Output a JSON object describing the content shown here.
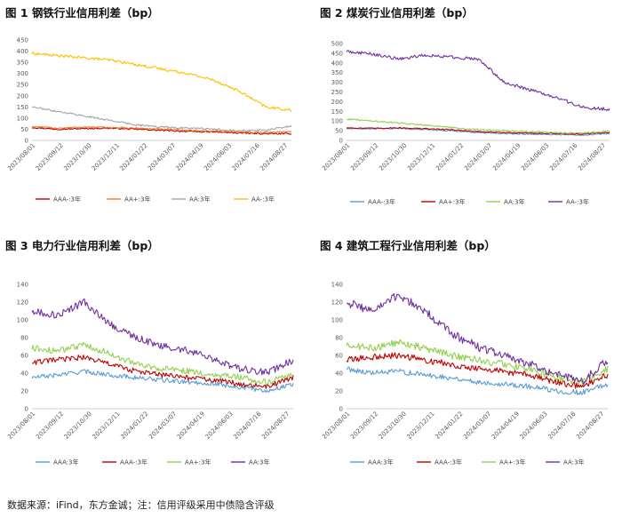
{
  "figures": [
    {
      "id": "fig1",
      "title": "图 1  钢铁行业信用利差（bp）",
      "chart_data": {
        "type": "line",
        "title": "图 1  钢铁行业信用利差（bp）",
        "xlabel": "",
        "ylabel": "",
        "ylim": [
          0,
          450
        ],
        "yticks": [
          0,
          50,
          100,
          150,
          200,
          250,
          300,
          350,
          400,
          450
        ],
        "xticks": [
          "2023/08/01",
          "2023/09/12",
          "2023/10/30",
          "2023/12/11",
          "2024/01/22",
          "2024/03/07",
          "2024/04/19",
          "2024/06/03",
          "2024/07/16",
          "2024/08/27"
        ],
        "grid": false,
        "legend": "bottom",
        "series": [
          {
            "name": "AAA-:3年",
            "color": "#c00000",
            "values": [
              58,
              50,
              53,
              55,
              50,
              45,
              40,
              38,
              33,
              30,
              30
            ]
          },
          {
            "name": "AA+:3年",
            "color": "#ed7d31",
            "values": [
              62,
              55,
              60,
              58,
              55,
              50,
              45,
              42,
              38,
              35,
              40
            ]
          },
          {
            "name": "AA:3年",
            "color": "#a5a5a5",
            "values": [
              150,
              130,
              110,
              90,
              70,
              60,
              55,
              50,
              45,
              45,
              65
            ]
          },
          {
            "name": "AA-:3年",
            "color": "#ffc000",
            "values": [
              390,
              380,
              370,
              360,
              340,
              320,
              300,
              270,
              220,
              150,
              135
            ]
          }
        ]
      }
    },
    {
      "id": "fig2",
      "title": "图 2  煤炭行业信用利差（bp）",
      "chart_data": {
        "type": "line",
        "title": "图 2  煤炭行业信用利差（bp）",
        "xlabel": "",
        "ylabel": "",
        "ylim": [
          0,
          500
        ],
        "yticks": [
          0,
          50,
          100,
          150,
          200,
          250,
          300,
          350,
          400,
          450,
          500
        ],
        "xticks": [
          "2023/08/01",
          "2023/09/12",
          "2023/10/30",
          "2023/12/11",
          "2024/01/22",
          "2024/03/07",
          "2024/04/19",
          "2024/06/03",
          "2024/07/16",
          "2024/08/27"
        ],
        "grid": false,
        "legend": "bottom",
        "series": [
          {
            "name": "AAA-:3年",
            "color": "#5b9bd5",
            "values": [
              60,
              60,
              62,
              55,
              50,
              40,
              35,
              32,
              30,
              28,
              35
            ]
          },
          {
            "name": "AA+:3年",
            "color": "#c00000",
            "values": [
              65,
              62,
              65,
              60,
              55,
              45,
              40,
              38,
              35,
              32,
              42
            ]
          },
          {
            "name": "AA:3年",
            "color": "#92d050",
            "values": [
              110,
              100,
              90,
              80,
              65,
              55,
              50,
              45,
              40,
              38,
              48
            ]
          },
          {
            "name": "AA-:3年",
            "color": "#7030a0",
            "values": [
              460,
              445,
              420,
              440,
              430,
              420,
              300,
              260,
              220,
              170,
              160
            ]
          }
        ]
      }
    },
    {
      "id": "fig3",
      "title": "图 3  电力行业信用利差（bp）",
      "chart_data": {
        "type": "line",
        "title": "图 3  电力行业信用利差（bp）",
        "xlabel": "",
        "ylabel": "",
        "ylim": [
          0,
          140
        ],
        "yticks": [
          0,
          20,
          40,
          60,
          80,
          100,
          120,
          140
        ],
        "xticks": [
          "2023/08/01",
          "2023/09/12",
          "2023/10/30",
          "2023/12/11",
          "2024/01/22",
          "2024/03/07",
          "2024/04/19",
          "2024/06/03",
          "2024/07/16",
          "2024/08/27"
        ],
        "grid": false,
        "legend": "bottom",
        "series": [
          {
            "name": "AAA:3年",
            "color": "#5b9bd5",
            "values": [
              35,
              38,
              42,
              38,
              35,
              32,
              30,
              28,
              24,
              20,
              28
            ]
          },
          {
            "name": "AAA-:3年",
            "color": "#c00000",
            "values": [
              52,
              55,
              58,
              50,
              42,
              38,
              35,
              32,
              28,
              25,
              35
            ]
          },
          {
            "name": "AA+:3年",
            "color": "#92d050",
            "values": [
              68,
              65,
              72,
              62,
              50,
              45,
              42,
              38,
              35,
              30,
              40
            ]
          },
          {
            "name": "AA:3年",
            "color": "#7030a0",
            "values": [
              110,
              105,
              120,
              95,
              80,
              70,
              65,
              55,
              45,
              40,
              55
            ]
          }
        ]
      }
    },
    {
      "id": "fig4",
      "title": "图 4  建筑工程行业信用利差（bp）",
      "chart_data": {
        "type": "line",
        "title": "图 4  建筑工程行业信用利差（bp）",
        "xlabel": "",
        "ylabel": "",
        "ylim": [
          0,
          140
        ],
        "yticks": [
          0,
          20,
          40,
          60,
          80,
          100,
          120,
          140
        ],
        "xticks": [
          "2023/08/01",
          "2023/09/12",
          "2023/10/30",
          "2023/12/11",
          "2024/01/22",
          "2024/03/07",
          "2024/04/19",
          "2024/06/03",
          "2024/07/16",
          "2024/08/27"
        ],
        "grid": false,
        "legend": "bottom",
        "series": [
          {
            "name": "AAA:3年",
            "color": "#5b9bd5",
            "values": [
              45,
              40,
              42,
              38,
              35,
              30,
              28,
              25,
              20,
              18,
              28
            ]
          },
          {
            "name": "AAA-:3年",
            "color": "#c00000",
            "values": [
              55,
              58,
              60,
              55,
              50,
              45,
              42,
              38,
              30,
              25,
              38
            ]
          },
          {
            "name": "AA+:3年",
            "color": "#92d050",
            "values": [
              72,
              68,
              75,
              68,
              60,
              55,
              50,
              45,
              35,
              30,
              45
            ]
          },
          {
            "name": "AA:3年",
            "color": "#7030a0",
            "values": [
              120,
              110,
              128,
              110,
              85,
              70,
              60,
              50,
              40,
              30,
              55
            ]
          }
        ]
      }
    }
  ],
  "footer": "数据来源：iFind，东方金诚；注：信用评级采用中债隐含评级"
}
